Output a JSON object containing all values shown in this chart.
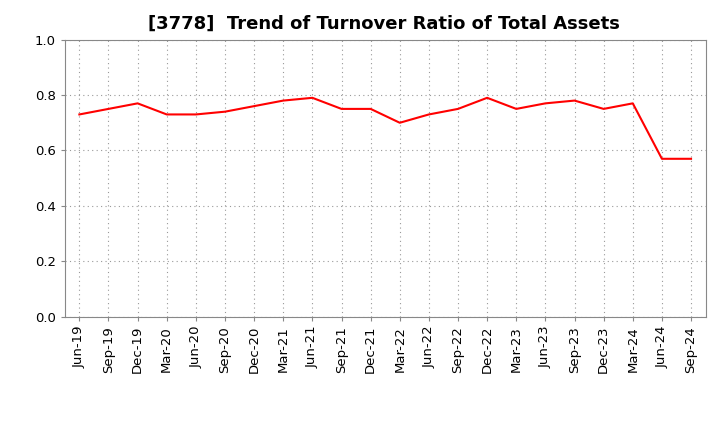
{
  "title": "[3778]  Trend of Turnover Ratio of Total Assets",
  "x_labels": [
    "Jun-19",
    "Sep-19",
    "Dec-19",
    "Mar-20",
    "Jun-20",
    "Sep-20",
    "Dec-20",
    "Mar-21",
    "Jun-21",
    "Sep-21",
    "Dec-21",
    "Mar-22",
    "Jun-22",
    "Sep-22",
    "Dec-22",
    "Mar-23",
    "Jun-23",
    "Sep-23",
    "Dec-23",
    "Mar-24",
    "Jun-24",
    "Sep-24"
  ],
  "values": [
    0.73,
    0.75,
    0.77,
    0.73,
    0.73,
    0.74,
    0.76,
    0.78,
    0.79,
    0.75,
    0.75,
    0.7,
    0.73,
    0.75,
    0.79,
    0.75,
    0.77,
    0.78,
    0.75,
    0.77,
    0.57,
    0.57
  ],
  "line_color": "#FF0000",
  "line_width": 1.5,
  "ylim": [
    0.0,
    1.0
  ],
  "yticks": [
    0.0,
    0.2,
    0.4,
    0.6,
    0.8,
    1.0
  ],
  "grid_color": "#999999",
  "background_color": "#ffffff",
  "title_fontsize": 13,
  "tick_fontsize": 9.5
}
